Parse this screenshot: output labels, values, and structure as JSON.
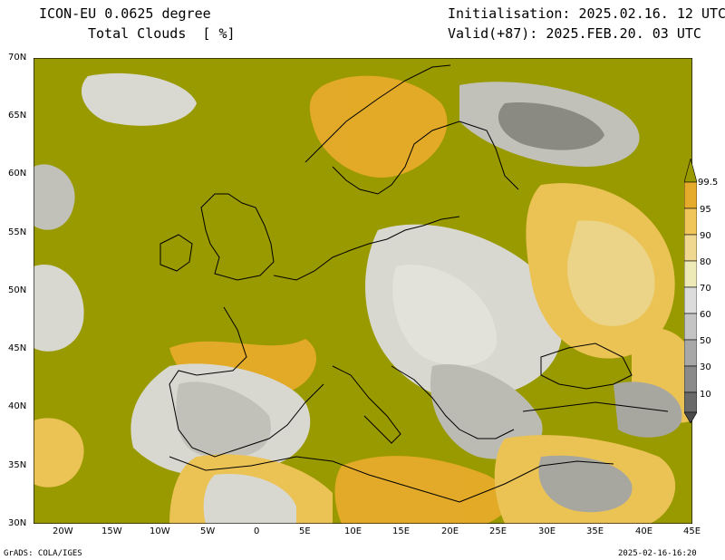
{
  "header": {
    "model": "ICON-EU 0.0625 degree",
    "field": "Total Clouds  [ %]",
    "init": "Initialisation: 2025.02.16. 12 UTC",
    "valid": "Valid(+87): 2025.FEB.20. 03 UTC"
  },
  "axes": {
    "lat_labels": [
      "70N",
      "65N",
      "60N",
      "55N",
      "50N",
      "45N",
      "40N",
      "35N",
      "30N"
    ],
    "lon_labels": [
      "20W",
      "15W",
      "10W",
      "5W",
      "0",
      "5E",
      "10E",
      "15E",
      "20E",
      "25E",
      "30E",
      "35E",
      "40E",
      "45E"
    ]
  },
  "colorbar": {
    "labels": [
      "99.5",
      "95",
      "90",
      "80",
      "70",
      "60",
      "50",
      "30",
      "10"
    ],
    "colors": [
      "#999900",
      "#e6ab2a",
      "#f0c65a",
      "#f0d890",
      "#eeeab8",
      "#dcdcdc",
      "#c4c4c4",
      "#a8a8a8",
      "#8a8a8a",
      "#6a6a6a",
      "#4a4a4a"
    ]
  },
  "map": {
    "overcast_color": "#999900",
    "coast_color": "#000000"
  },
  "footer": {
    "left": "GrADS: COLA/IGES",
    "right": "2025-02-16-16:20"
  }
}
